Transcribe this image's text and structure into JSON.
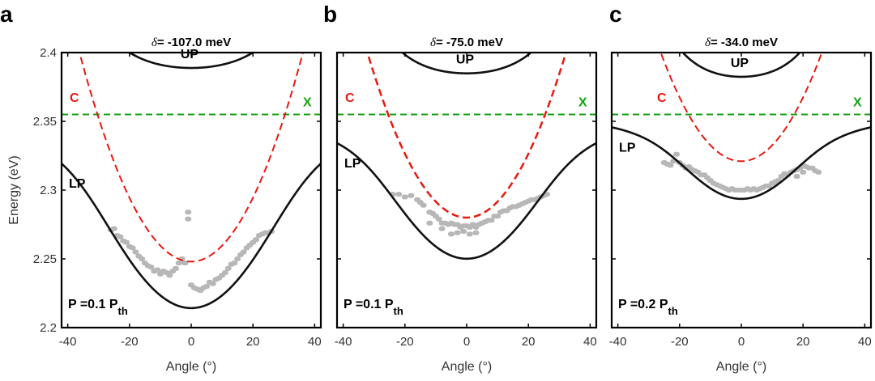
{
  "chart_data": [
    {
      "type": "line",
      "panel_label": "a",
      "title_symbol": "δ",
      "title_value": "= -107.0 meV",
      "xlabel": "Angle (°)",
      "ylabel": "Energy (eV)",
      "xlim": [
        -42,
        42
      ],
      "ylim": [
        2.2,
        2.4
      ],
      "xticks": [
        -40,
        -20,
        0,
        20,
        40
      ],
      "yticks": [
        2.2,
        2.25,
        2.3,
        2.35,
        2.4
      ],
      "tick_labels_x": [
        "-40",
        "-20",
        "0",
        "20",
        "40"
      ],
      "tick_labels_y": [
        "2.2",
        "2.25",
        "2.3",
        "2.35",
        "2.4"
      ],
      "exciton_energy": 2.355,
      "cavity_energy_at_zero": 2.248,
      "cavity_curvature": 0.000116,
      "rabi_half_splitting": 0.069,
      "labels": {
        "up": "UP",
        "lp": "LP",
        "cavity": "C",
        "exciton": "X"
      },
      "power_text": "P =0.1 P",
      "power_sub": "th",
      "points": [
        [
          -26,
          2.271
        ],
        [
          -25,
          2.272
        ],
        [
          -24,
          2.267
        ],
        [
          -23,
          2.266
        ],
        [
          -22,
          2.263
        ],
        [
          -21,
          2.262
        ],
        [
          -20,
          2.259
        ],
        [
          -19,
          2.258
        ],
        [
          -18,
          2.255
        ],
        [
          -17,
          2.252
        ],
        [
          -16,
          2.25
        ],
        [
          -15,
          2.247
        ],
        [
          -14,
          2.245
        ],
        [
          -13,
          2.244
        ],
        [
          -12,
          2.241
        ],
        [
          -11,
          2.242
        ],
        [
          -10,
          2.239
        ],
        [
          -9,
          2.241
        ],
        [
          -8,
          2.24
        ],
        [
          -7,
          2.238
        ],
        [
          -6,
          2.241
        ],
        [
          -5,
          2.243
        ],
        [
          -4,
          2.247
        ],
        [
          -3,
          2.25
        ],
        [
          -2,
          2.247
        ],
        [
          -1,
          2.284
        ],
        [
          -1,
          2.279
        ],
        [
          0,
          2.231
        ],
        [
          1,
          2.229
        ],
        [
          2,
          2.228
        ],
        [
          3,
          2.227
        ],
        [
          4,
          2.229
        ],
        [
          5,
          2.23
        ],
        [
          6,
          2.233
        ],
        [
          7,
          2.232
        ],
        [
          8,
          2.235
        ],
        [
          9,
          2.236
        ],
        [
          10,
          2.238
        ],
        [
          11,
          2.24
        ],
        [
          12,
          2.243
        ],
        [
          13,
          2.246
        ],
        [
          14,
          2.247
        ],
        [
          15,
          2.25
        ],
        [
          16,
          2.253
        ],
        [
          17,
          2.255
        ],
        [
          18,
          2.258
        ],
        [
          19,
          2.26
        ],
        [
          20,
          2.262
        ],
        [
          21,
          2.264
        ],
        [
          22,
          2.267
        ],
        [
          23,
          2.268
        ],
        [
          24,
          2.269
        ],
        [
          25,
          2.269
        ],
        [
          26,
          2.27
        ]
      ]
    },
    {
      "type": "line",
      "panel_label": "b",
      "title_symbol": "δ",
      "title_value": "= -75.0 meV",
      "xlabel": "Angle (°)",
      "ylabel": "",
      "xlim": [
        -42,
        42
      ],
      "ylim": [
        2.2,
        2.4
      ],
      "xticks": [
        -40,
        -20,
        0,
        20,
        40
      ],
      "yticks": [
        2.2,
        2.25,
        2.3,
        2.35,
        2.4
      ],
      "tick_labels_x": [
        "-40",
        "-20",
        "0",
        "20",
        "40"
      ],
      "tick_labels_y": [],
      "exciton_energy": 2.355,
      "cavity_energy_at_zero": 2.28,
      "cavity_curvature": 0.000116,
      "rabi_half_splitting": 0.056,
      "labels": {
        "up": "UP",
        "lp": "LP",
        "cavity": "C",
        "exciton": "X"
      },
      "power_text": "P =0.1 P",
      "power_sub": "th",
      "points": [
        [
          -24,
          2.297
        ],
        [
          -22,
          2.297
        ],
        [
          -20,
          2.295
        ],
        [
          -18,
          2.296
        ],
        [
          -16,
          2.293
        ],
        [
          -15,
          2.291
        ],
        [
          -14,
          2.289
        ],
        [
          -12,
          2.284
        ],
        [
          -11,
          2.283
        ],
        [
          -10,
          2.281
        ],
        [
          -9,
          2.279
        ],
        [
          -8,
          2.276
        ],
        [
          -7,
          2.276
        ],
        [
          -6,
          2.275
        ],
        [
          -5,
          2.276
        ],
        [
          -4,
          2.275
        ],
        [
          -3,
          2.275
        ],
        [
          -2,
          2.273
        ],
        [
          -1,
          2.274
        ],
        [
          0,
          2.274
        ],
        [
          1,
          2.273
        ],
        [
          2,
          2.275
        ],
        [
          3,
          2.273
        ],
        [
          4,
          2.275
        ],
        [
          5,
          2.276
        ],
        [
          6,
          2.277
        ],
        [
          7,
          2.278
        ],
        [
          8,
          2.278
        ],
        [
          9,
          2.281
        ],
        [
          10,
          2.281
        ],
        [
          11,
          2.284
        ],
        [
          12,
          2.285
        ],
        [
          13,
          2.285
        ],
        [
          14,
          2.287
        ],
        [
          15,
          2.288
        ],
        [
          16,
          2.288
        ],
        [
          17,
          2.289
        ],
        [
          18,
          2.29
        ],
        [
          19,
          2.291
        ],
        [
          20,
          2.292
        ],
        [
          21,
          2.293
        ],
        [
          22,
          2.293
        ],
        [
          23,
          2.294
        ],
        [
          24,
          2.295
        ],
        [
          25,
          2.296
        ],
        [
          26,
          2.297
        ],
        [
          -5,
          2.268
        ],
        [
          -3,
          2.269
        ],
        [
          -1,
          2.27
        ],
        [
          1,
          2.268
        ],
        [
          3,
          2.269
        ],
        [
          -8,
          2.272
        ],
        [
          -12,
          2.276
        ]
      ]
    },
    {
      "type": "line",
      "panel_label": "c",
      "title_symbol": "δ",
      "title_value": "= -34.0 meV",
      "xlabel": "Angle (°)",
      "ylabel": "",
      "xlim": [
        -42,
        42
      ],
      "ylim": [
        2.2,
        2.4
      ],
      "xticks": [
        -40,
        -20,
        0,
        20,
        40
      ],
      "yticks": [
        2.2,
        2.25,
        2.3,
        2.35,
        2.4
      ],
      "tick_labels_x": [
        "-40",
        "-20",
        "0",
        "20",
        "40"
      ],
      "tick_labels_y": [],
      "exciton_energy": 2.355,
      "cavity_energy_at_zero": 2.321,
      "cavity_curvature": 0.000116,
      "rabi_half_splitting": 0.041,
      "labels": {
        "up": "UP",
        "lp": "LP",
        "cavity": "C",
        "exciton": "X"
      },
      "power_text": "P =0.2 P",
      "power_sub": "th",
      "points": [
        [
          -25,
          2.32
        ],
        [
          -24,
          2.319
        ],
        [
          -23,
          2.318
        ],
        [
          -22,
          2.321
        ],
        [
          -21,
          2.326
        ],
        [
          -20,
          2.32
        ],
        [
          -19,
          2.318
        ],
        [
          -18,
          2.316
        ],
        [
          -17,
          2.317
        ],
        [
          -16,
          2.315
        ],
        [
          -15,
          2.314
        ],
        [
          -14,
          2.313
        ],
        [
          -13,
          2.311
        ],
        [
          -12,
          2.311
        ],
        [
          -11,
          2.309
        ],
        [
          -10,
          2.307
        ],
        [
          -9,
          2.305
        ],
        [
          -8,
          2.304
        ],
        [
          -7,
          2.303
        ],
        [
          -6,
          2.302
        ],
        [
          -5,
          2.301
        ],
        [
          -4,
          2.3
        ],
        [
          -3,
          2.301
        ],
        [
          -2,
          2.3
        ],
        [
          -1,
          2.3
        ],
        [
          0,
          2.3
        ],
        [
          1,
          2.3
        ],
        [
          2,
          2.301
        ],
        [
          3,
          2.3
        ],
        [
          4,
          2.301
        ],
        [
          5,
          2.3
        ],
        [
          6,
          2.301
        ],
        [
          7,
          2.302
        ],
        [
          8,
          2.303
        ],
        [
          9,
          2.303
        ],
        [
          10,
          2.305
        ],
        [
          11,
          2.306
        ],
        [
          12,
          2.307
        ],
        [
          13,
          2.31
        ],
        [
          14,
          2.312
        ],
        [
          15,
          2.311
        ],
        [
          16,
          2.313
        ],
        [
          17,
          2.314
        ],
        [
          18,
          2.315
        ],
        [
          19,
          2.316
        ],
        [
          20,
          2.318
        ],
        [
          21,
          2.317
        ],
        [
          22,
          2.316
        ],
        [
          23,
          2.316
        ],
        [
          24,
          2.314
        ],
        [
          25,
          2.313
        ],
        [
          20,
          2.313
        ],
        [
          18,
          2.31
        ]
      ]
    }
  ],
  "colors": {
    "polariton": "#111111",
    "cavity": "#e8190f",
    "exciton": "#15a015",
    "data_points": "#b7b7b7",
    "axis": "#000000",
    "up_label": "#000000",
    "lp_label": "#000000",
    "c_label": "#e8190f",
    "x_label": "#15a015"
  }
}
